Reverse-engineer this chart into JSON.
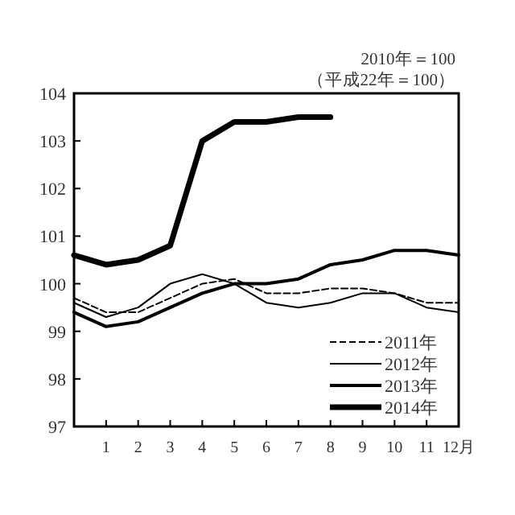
{
  "chart_data": {
    "type": "line",
    "annotations": [
      "2010年＝100",
      "（平成22年＝100）"
    ],
    "x": [
      0,
      1,
      2,
      3,
      4,
      5,
      6,
      7,
      8,
      9,
      10,
      11,
      12
    ],
    "xlim": [
      0,
      12
    ],
    "xticks": [
      1,
      2,
      3,
      4,
      5,
      6,
      7,
      8,
      9,
      10,
      11,
      {
        "value": 12,
        "label": "12月"
      }
    ],
    "ylim": [
      97,
      104
    ],
    "yticks": [
      97,
      98,
      99,
      100,
      101,
      102,
      103,
      104
    ],
    "grid": false,
    "legend": "bottom right",
    "marker": "none",
    "series": [
      {
        "name": "2011年",
        "color": "#000000",
        "line_style": "dashed",
        "values": [
          99.7,
          99.4,
          99.4,
          99.7,
          100.0,
          100.1,
          99.8,
          99.8,
          99.9,
          99.9,
          99.8,
          99.6,
          99.6
        ]
      },
      {
        "name": "2012年",
        "color": "#000000",
        "line_style": "solid",
        "values": [
          99.6,
          99.3,
          99.5,
          100.0,
          100.2,
          100.0,
          99.6,
          99.5,
          99.6,
          99.8,
          99.8,
          99.5,
          99.4
        ]
      },
      {
        "name": "2013年",
        "color": "#000000",
        "line_style": "solid",
        "values": [
          99.4,
          99.1,
          99.2,
          99.5,
          99.8,
          100.0,
          100.0,
          100.1,
          100.4,
          100.5,
          100.7,
          100.7,
          100.6
        ]
      },
      {
        "name": "2014年",
        "color": "#000000",
        "line_style": "solid",
        "x": [
          0,
          1,
          2,
          3,
          4,
          5,
          6,
          7,
          8
        ],
        "values": [
          100.6,
          100.4,
          100.5,
          100.8,
          103.0,
          103.4,
          103.4,
          103.5,
          103.5
        ]
      }
    ]
  }
}
